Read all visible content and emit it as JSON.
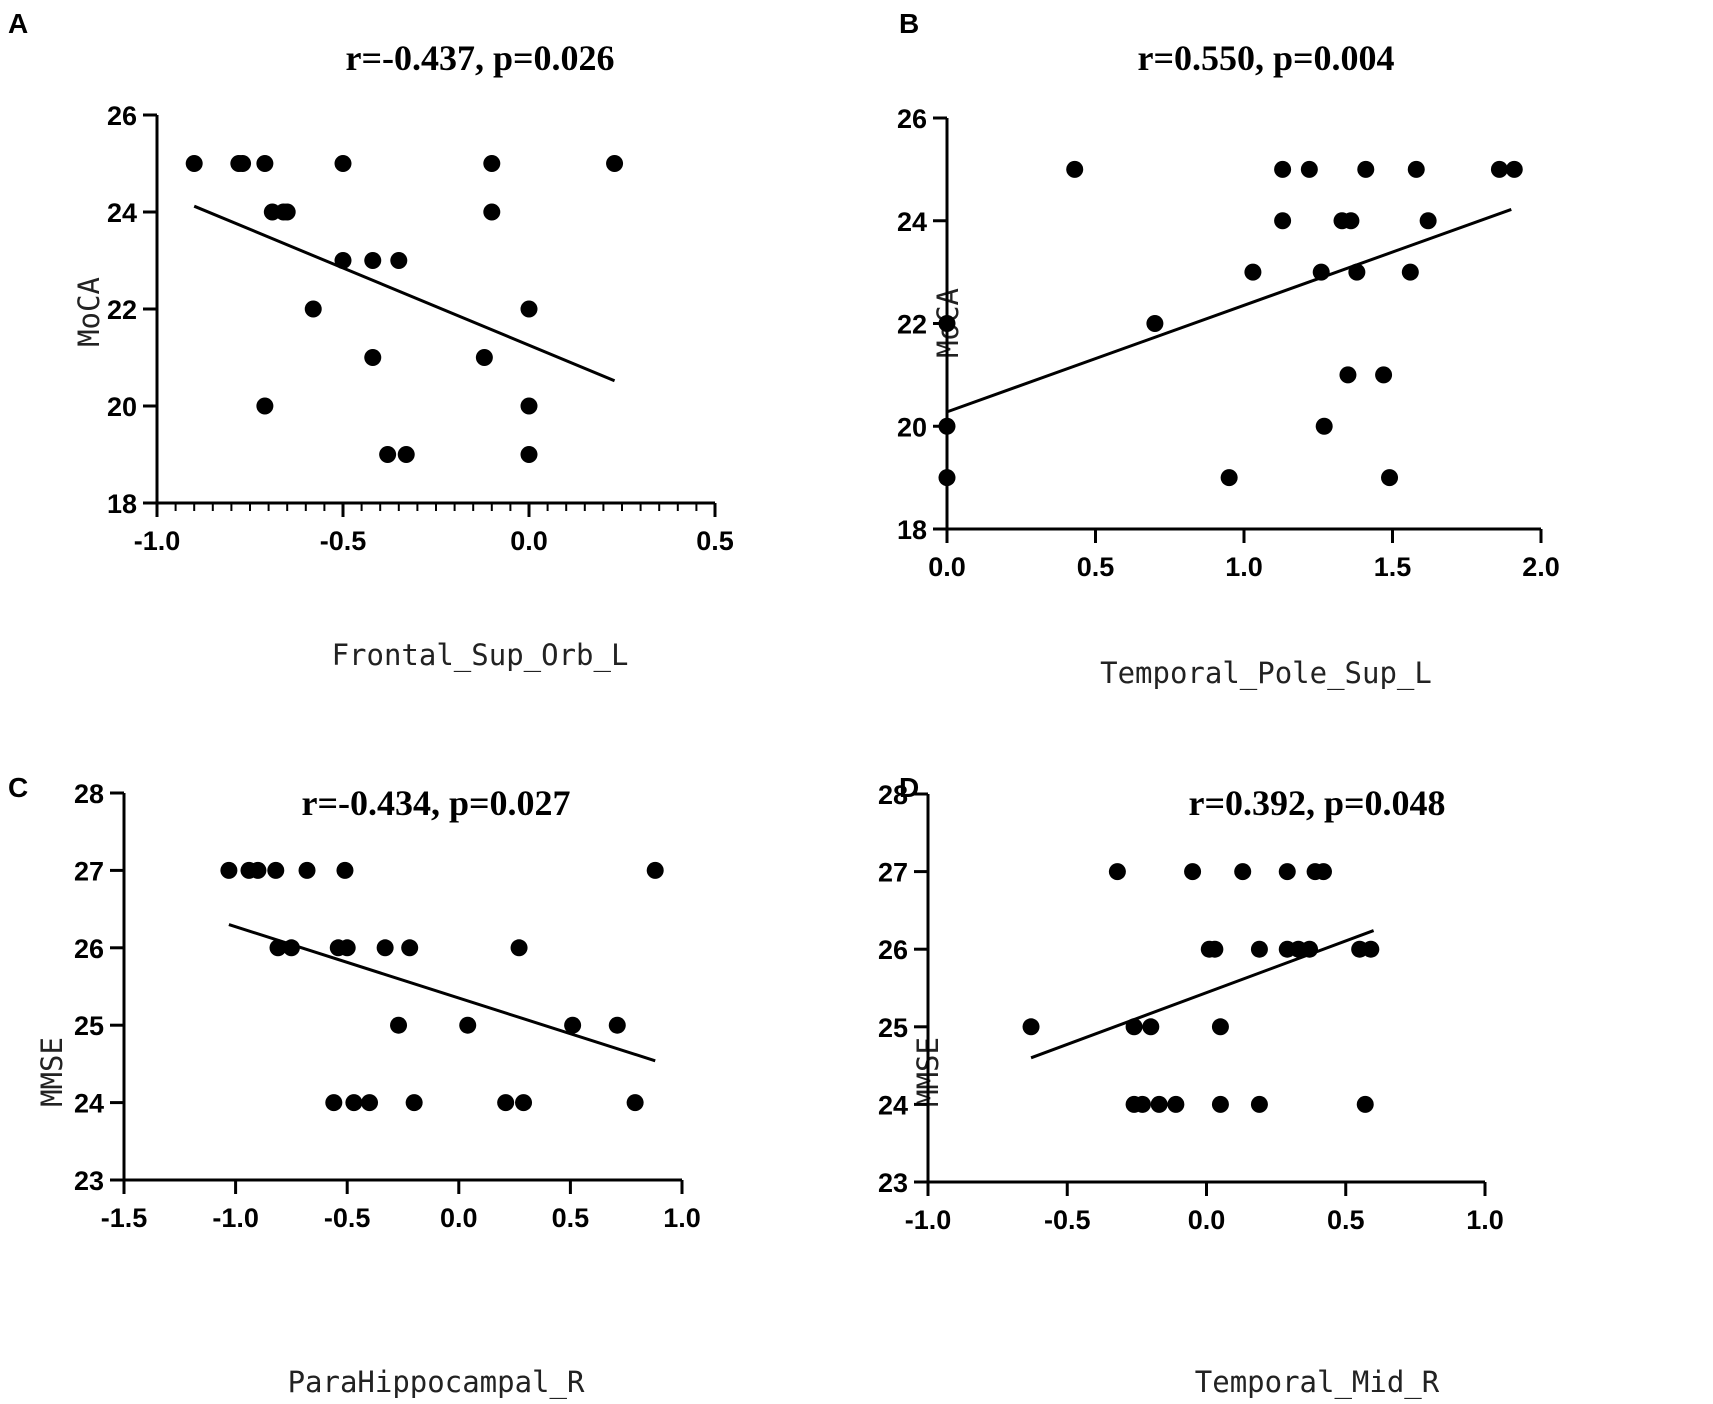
{
  "chart_data": [
    {
      "type": "scatter",
      "panel": "A",
      "title": "r=-0.437, p=0.026",
      "xlabel": "Frontal_Sup_Orb_L",
      "ylabel": "MoCA",
      "xlim": [
        -1.0,
        0.5
      ],
      "ylim": [
        18,
        26
      ],
      "xticks": [
        -1.0,
        -0.5,
        0.0,
        0.5
      ],
      "xtick_labels": [
        "-1.0",
        "-0.5",
        "0.0",
        "0.5"
      ],
      "xminor_step": 0.05,
      "yticks": [
        18,
        20,
        22,
        24,
        26
      ],
      "ytick_labels": [
        "18",
        "20",
        "22",
        "24",
        "26"
      ],
      "points": [
        [
          -0.9,
          25
        ],
        [
          -0.78,
          25
        ],
        [
          -0.77,
          25
        ],
        [
          -0.71,
          25
        ],
        [
          -0.5,
          25
        ],
        [
          -0.1,
          25
        ],
        [
          0.23,
          25
        ],
        [
          -0.69,
          24
        ],
        [
          -0.66,
          24
        ],
        [
          -0.65,
          24
        ],
        [
          -0.1,
          24
        ],
        [
          -0.5,
          23
        ],
        [
          -0.42,
          23
        ],
        [
          -0.35,
          23
        ],
        [
          -0.58,
          22
        ],
        [
          0.0,
          22
        ],
        [
          -0.42,
          21
        ],
        [
          -0.12,
          21
        ],
        [
          -0.71,
          20
        ],
        [
          0.0,
          20
        ],
        [
          -0.38,
          19
        ],
        [
          -0.33,
          19
        ],
        [
          0.0,
          19
        ]
      ],
      "fit_line": [
        [
          -0.9,
          24.12
        ],
        [
          0.23,
          20.52
        ]
      ]
    },
    {
      "type": "scatter",
      "panel": "B",
      "title": "r=0.550, p=0.004",
      "xlabel": "Temporal_Pole_Sup_L",
      "ylabel": "MoCA",
      "xlim": [
        0.0,
        2.0
      ],
      "ylim": [
        18,
        26
      ],
      "xticks": [
        0.0,
        0.5,
        1.0,
        1.5,
        2.0
      ],
      "xtick_labels": [
        "0.0",
        "0.5",
        "1.0",
        "1.5",
        "2.0"
      ],
      "xminor_step": 0,
      "yticks": [
        18,
        20,
        22,
        24,
        26
      ],
      "ytick_labels": [
        "18",
        "20",
        "22",
        "24",
        "26"
      ],
      "points": [
        [
          0.43,
          25
        ],
        [
          1.13,
          25
        ],
        [
          1.22,
          25
        ],
        [
          1.41,
          25
        ],
        [
          1.58,
          25
        ],
        [
          1.86,
          25
        ],
        [
          1.91,
          25
        ],
        [
          1.13,
          24
        ],
        [
          1.33,
          24
        ],
        [
          1.36,
          24
        ],
        [
          1.62,
          24
        ],
        [
          1.03,
          23
        ],
        [
          1.26,
          23
        ],
        [
          1.38,
          23
        ],
        [
          1.56,
          23
        ],
        [
          0.0,
          22
        ],
        [
          0.7,
          22
        ],
        [
          1.35,
          21
        ],
        [
          1.47,
          21
        ],
        [
          0.0,
          20
        ],
        [
          1.27,
          20
        ],
        [
          0.0,
          19
        ],
        [
          0.95,
          19
        ],
        [
          1.49,
          19
        ]
      ],
      "fit_line": [
        [
          0.0,
          20.28
        ],
        [
          1.9,
          24.22
        ]
      ]
    },
    {
      "type": "scatter",
      "panel": "C",
      "title": "r=-0.434,  p=0.027",
      "xlabel": "ParaHippocampal_R",
      "ylabel": "MMSE",
      "xlim": [
        -1.5,
        1.0
      ],
      "ylim": [
        23,
        28
      ],
      "xticks": [
        -1.5,
        -1.0,
        -0.5,
        0.0,
        0.5,
        1.0
      ],
      "xtick_labels": [
        "-1.5",
        "-1.0",
        "-0.5",
        "0.0",
        "0.5",
        "1.0"
      ],
      "xminor_step": 0,
      "yticks": [
        23,
        24,
        25,
        26,
        27,
        28
      ],
      "ytick_labels": [
        "23",
        "24",
        "25",
        "26",
        "27",
        "28"
      ],
      "points": [
        [
          -1.03,
          27
        ],
        [
          -0.94,
          27
        ],
        [
          -0.9,
          27
        ],
        [
          -0.82,
          27
        ],
        [
          -0.68,
          27
        ],
        [
          -0.51,
          27
        ],
        [
          0.88,
          27
        ],
        [
          -0.81,
          26
        ],
        [
          -0.75,
          26
        ],
        [
          -0.54,
          26
        ],
        [
          -0.5,
          26
        ],
        [
          -0.33,
          26
        ],
        [
          -0.22,
          26
        ],
        [
          0.27,
          26
        ],
        [
          -0.27,
          25
        ],
        [
          0.04,
          25
        ],
        [
          0.51,
          25
        ],
        [
          0.71,
          25
        ],
        [
          -0.56,
          24
        ],
        [
          -0.47,
          24
        ],
        [
          -0.4,
          24
        ],
        [
          -0.2,
          24
        ],
        [
          0.21,
          24
        ],
        [
          0.29,
          24
        ],
        [
          0.79,
          24
        ]
      ],
      "fit_line": [
        [
          -1.03,
          26.3
        ],
        [
          0.88,
          24.54
        ]
      ]
    },
    {
      "type": "scatter",
      "panel": "D",
      "title": "r=0.392, p=0.048",
      "xlabel": "Temporal_Mid_R",
      "ylabel": "MMSE",
      "xlim": [
        -1.0,
        1.0
      ],
      "ylim": [
        23,
        28
      ],
      "xticks": [
        -1.0,
        -0.5,
        0.0,
        0.5,
        1.0
      ],
      "xtick_labels": [
        "-1.0",
        "-0.5",
        "0.0",
        "0.5",
        "1.0"
      ],
      "xminor_step": 0,
      "yticks": [
        23,
        24,
        25,
        26,
        27,
        28
      ],
      "ytick_labels": [
        "23",
        "24",
        "25",
        "26",
        "27",
        "28"
      ],
      "points": [
        [
          -0.32,
          27
        ],
        [
          -0.05,
          27
        ],
        [
          0.13,
          27
        ],
        [
          0.29,
          27
        ],
        [
          0.39,
          27
        ],
        [
          0.42,
          27
        ],
        [
          0.01,
          26
        ],
        [
          0.03,
          26
        ],
        [
          0.19,
          26
        ],
        [
          0.29,
          26
        ],
        [
          0.33,
          26
        ],
        [
          0.37,
          26
        ],
        [
          0.55,
          26
        ],
        [
          0.59,
          26
        ],
        [
          -0.63,
          25
        ],
        [
          -0.26,
          25
        ],
        [
          -0.2,
          25
        ],
        [
          0.05,
          25
        ],
        [
          -0.26,
          24
        ],
        [
          -0.23,
          24
        ],
        [
          -0.17,
          24
        ],
        [
          -0.11,
          24
        ],
        [
          0.05,
          24
        ],
        [
          0.19,
          24
        ],
        [
          0.57,
          24
        ]
      ],
      "fit_line": [
        [
          -0.63,
          24.6
        ],
        [
          0.6,
          26.24
        ]
      ]
    }
  ]
}
